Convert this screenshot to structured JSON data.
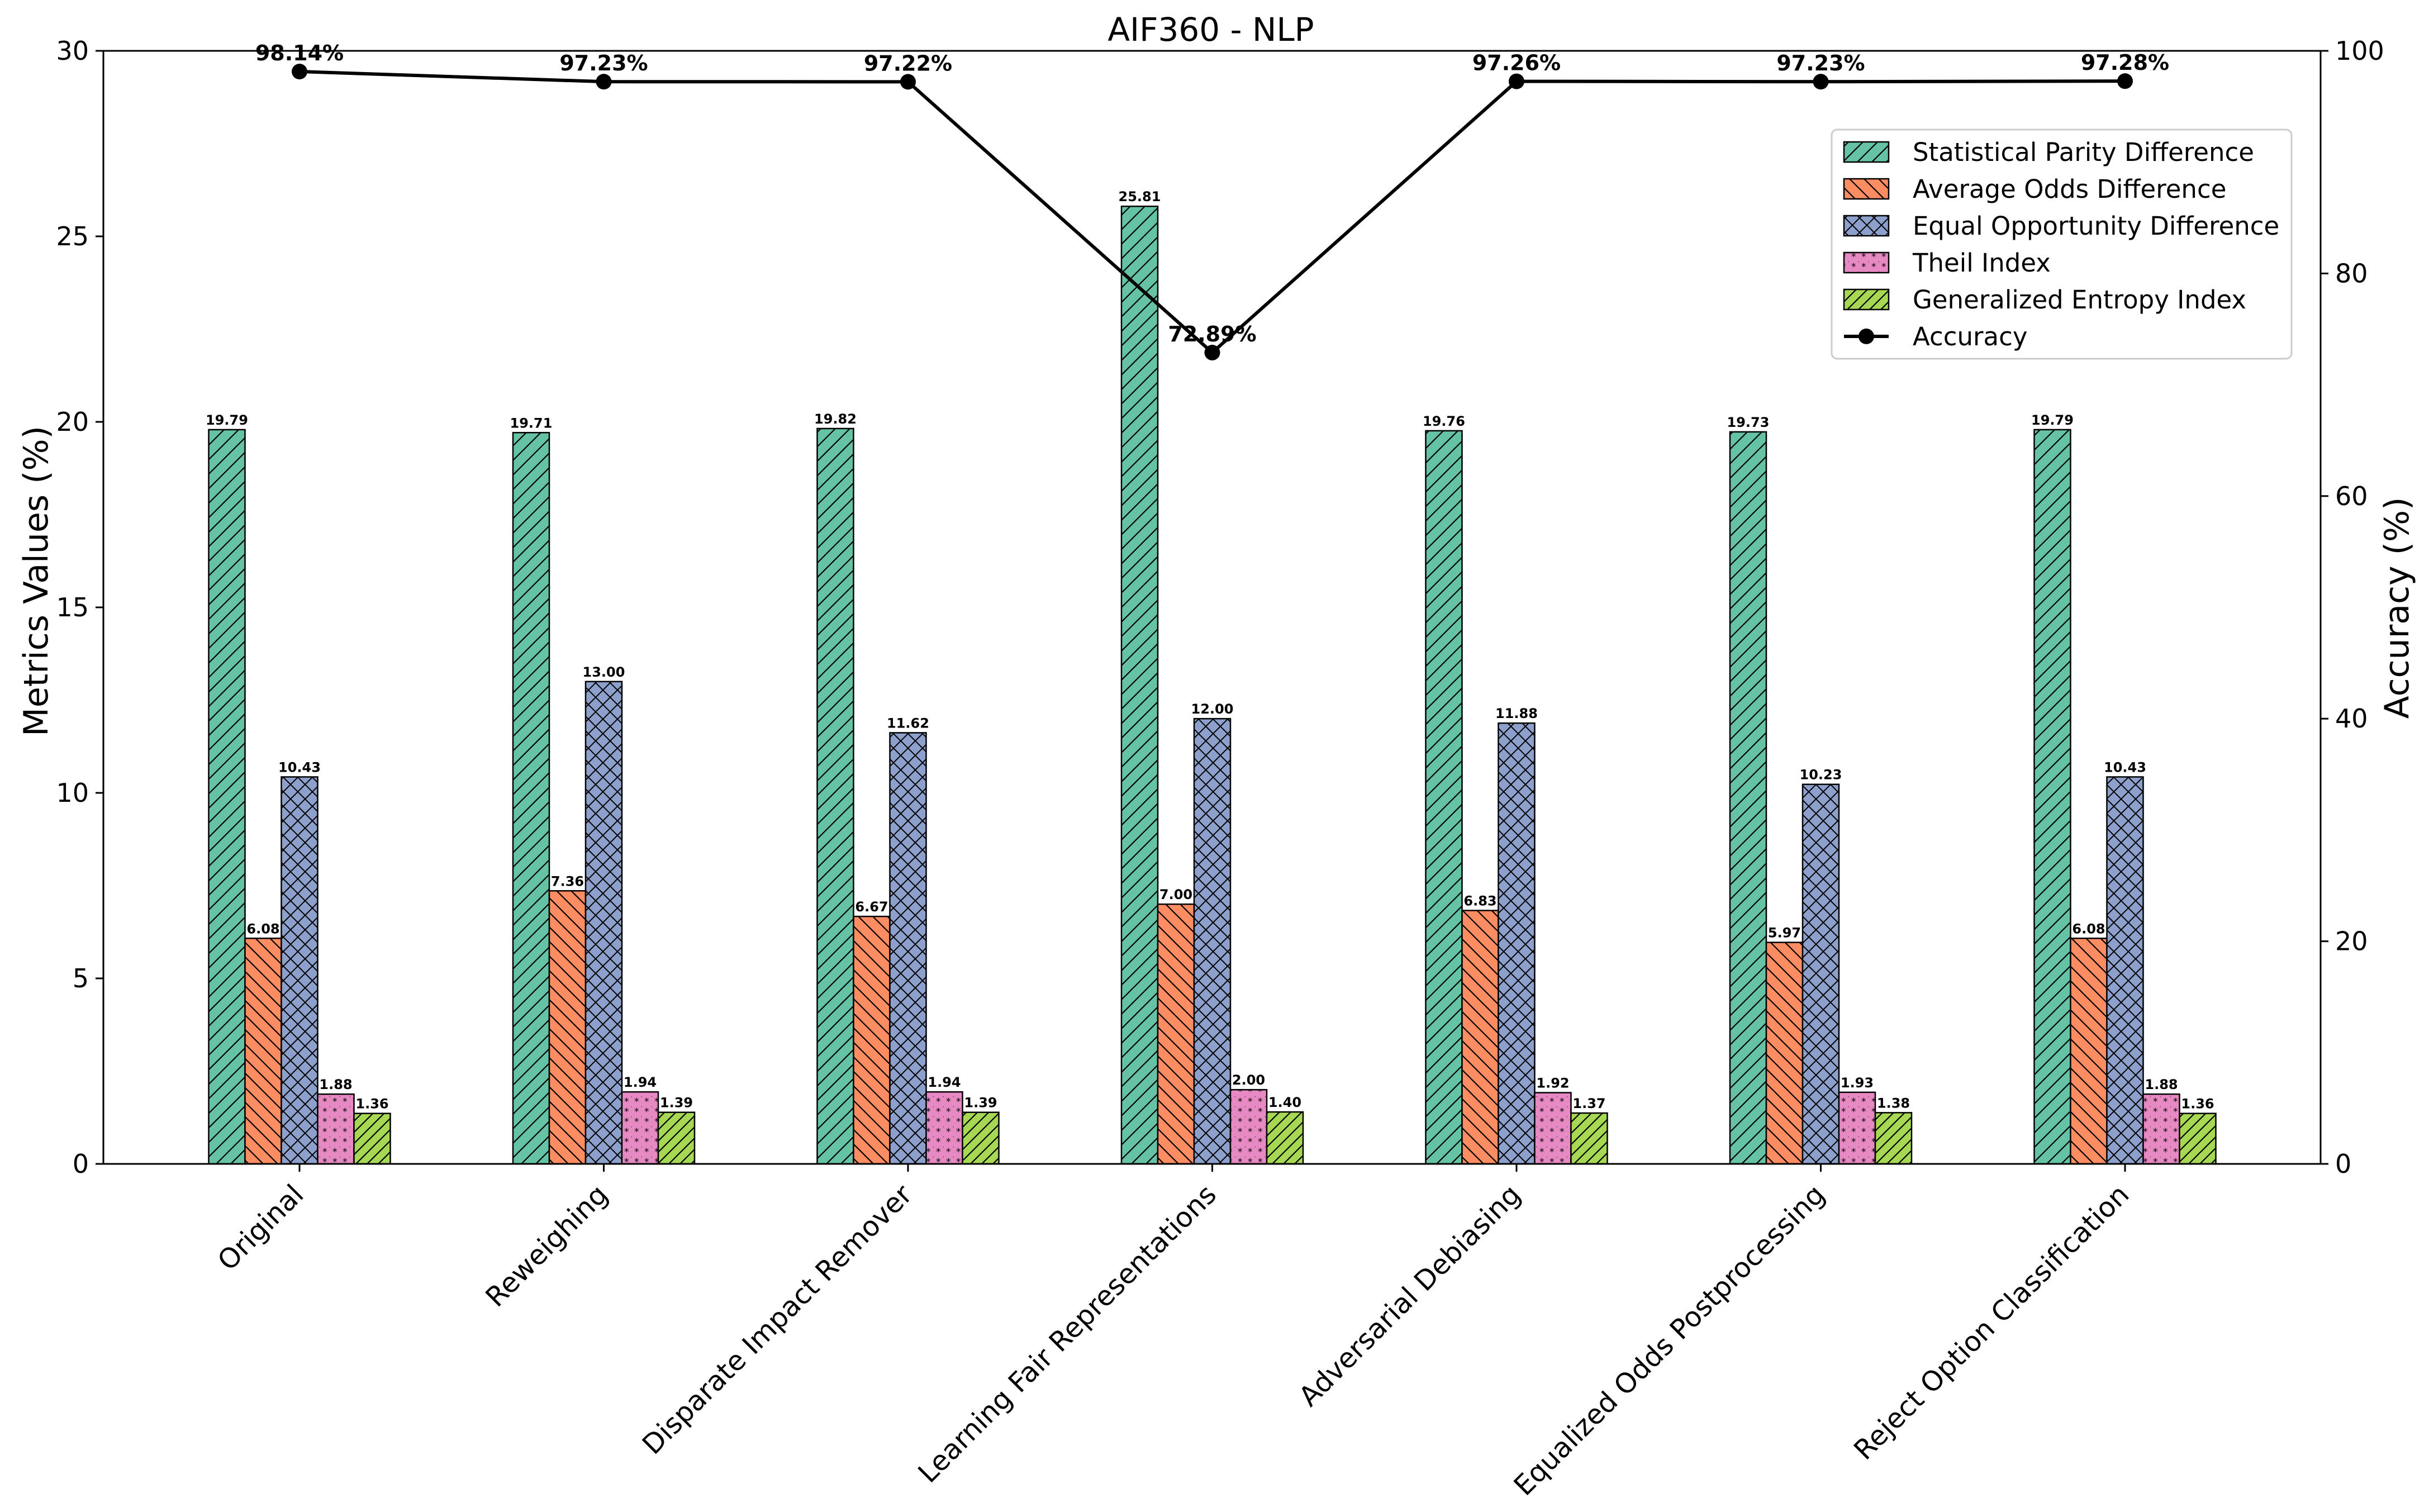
{
  "chart_data": {
    "type": "bar",
    "title": "AIF360 - NLP",
    "ylabel": "Metrics Values (%)",
    "y2label": "Accuracy (%)",
    "ylim": [
      0,
      30
    ],
    "y2lim": [
      0,
      100
    ],
    "yticks": [
      "0",
      "5",
      "10",
      "15",
      "20",
      "25",
      "30"
    ],
    "y2ticks": [
      "0",
      "20",
      "40",
      "60",
      "80",
      "100"
    ],
    "legend_position": "upper-right",
    "categories": [
      "Original",
      "Reweighing",
      "Disparate Impact Remover",
      "Learning Fair Representations",
      "Adversarial Debiasing",
      "Equalized Odds Postprocessing",
      "Reject Option Classification"
    ],
    "series": [
      {
        "name": "Statistical Parity Difference",
        "color": "#66c2a5",
        "pattern": "diag-forward",
        "values": [
          19.79,
          19.71,
          19.82,
          25.81,
          19.76,
          19.73,
          19.79
        ],
        "labels": [
          "19.79",
          "19.71",
          "19.82",
          "25.81",
          "19.76",
          "19.73",
          "19.79"
        ]
      },
      {
        "name": "Average Odds Difference",
        "color": "#fc8d62",
        "pattern": "diag-back",
        "values": [
          6.08,
          7.36,
          6.67,
          7.0,
          6.83,
          5.97,
          6.08
        ],
        "labels": [
          "6.08",
          "7.36",
          "6.67",
          "7.00",
          "6.83",
          "5.97",
          "6.08"
        ]
      },
      {
        "name": "Equal Opportunity Difference",
        "color": "#8da0cb",
        "pattern": "crosshatch",
        "values": [
          10.43,
          13.0,
          11.62,
          12.0,
          11.88,
          10.23,
          10.43
        ],
        "labels": [
          "10.43",
          "13.00",
          "11.62",
          "12.00",
          "11.88",
          "10.23",
          "10.43"
        ]
      },
      {
        "name": "Theil Index",
        "color": "#e78ac3",
        "pattern": "stars",
        "values": [
          1.88,
          1.94,
          1.94,
          2.0,
          1.92,
          1.93,
          1.88
        ],
        "labels": [
          "1.88",
          "1.94",
          "1.94",
          "2.00",
          "1.92",
          "1.93",
          "1.88"
        ]
      },
      {
        "name": "Generalized Entropy Index",
        "color": "#a6d854",
        "pattern": "diag-forward-dense",
        "values": [
          1.36,
          1.39,
          1.39,
          1.4,
          1.37,
          1.38,
          1.36
        ],
        "labels": [
          "1.36",
          "1.39",
          "1.39",
          "1.40",
          "1.37",
          "1.38",
          "1.36"
        ]
      }
    ],
    "line_series": {
      "name": "Accuracy",
      "color": "#000000",
      "axis": "right",
      "values": [
        98.14,
        97.23,
        97.22,
        72.89,
        97.26,
        97.23,
        97.28
      ],
      "labels": [
        "98.14%",
        "97.23%",
        "97.22%",
        "72.89%",
        "97.26%",
        "97.23%",
        "97.28%"
      ]
    }
  }
}
